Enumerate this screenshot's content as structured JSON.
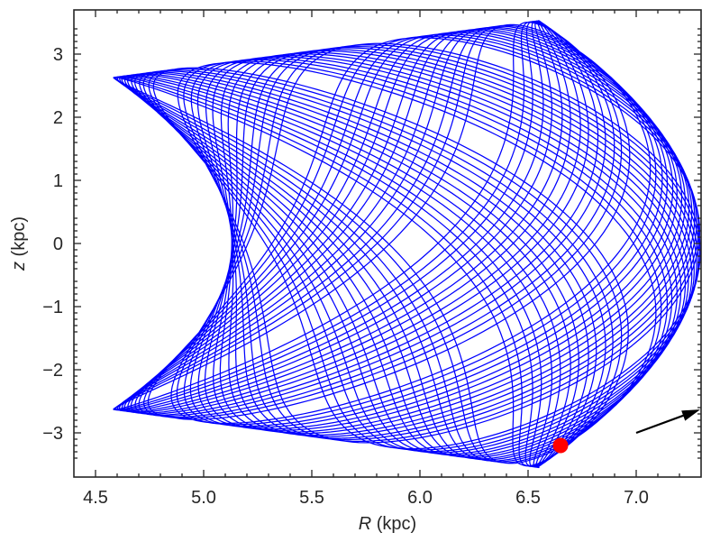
{
  "chart_data": {
    "type": "line",
    "title": "",
    "xlabel_var": "R",
    "xlabel_unit": " (kpc)",
    "ylabel_var": "z",
    "ylabel_unit": " (kpc)",
    "xlim": [
      4.4,
      7.3
    ],
    "ylim": [
      -3.7,
      3.7
    ],
    "x_ticks": [
      4.5,
      5.0,
      5.5,
      6.0,
      6.5,
      7.0
    ],
    "x_tick_labels": [
      "4.5",
      "5.0",
      "5.5",
      "6.0",
      "6.5",
      "7.0"
    ],
    "y_ticks": [
      -3,
      -2,
      -1,
      0,
      1,
      2,
      3
    ],
    "y_tick_labels": [
      "−3",
      "−2",
      "−1",
      "0",
      "1",
      "2",
      "3"
    ],
    "grid": false,
    "series": [
      {
        "kind": "orbit",
        "color": "#0000ff",
        "envelope_corners": [
          {
            "R": 4.58,
            "z": 2.63
          },
          {
            "R": 6.55,
            "z": 3.53
          },
          {
            "R": 6.55,
            "z": -3.55
          },
          {
            "R": 4.58,
            "z": -2.63
          }
        ],
        "R_min_at_z0": 5.13,
        "R_max_at_z0": 7.3
      },
      {
        "kind": "marker",
        "color": "#ff0000",
        "points": [
          {
            "R": 6.65,
            "z": -3.2
          }
        ]
      },
      {
        "kind": "arrow",
        "color": "#000000",
        "from": {
          "R": 7.0,
          "z": -3.0
        },
        "to": {
          "R": 7.32,
          "z": -2.63
        }
      }
    ]
  }
}
